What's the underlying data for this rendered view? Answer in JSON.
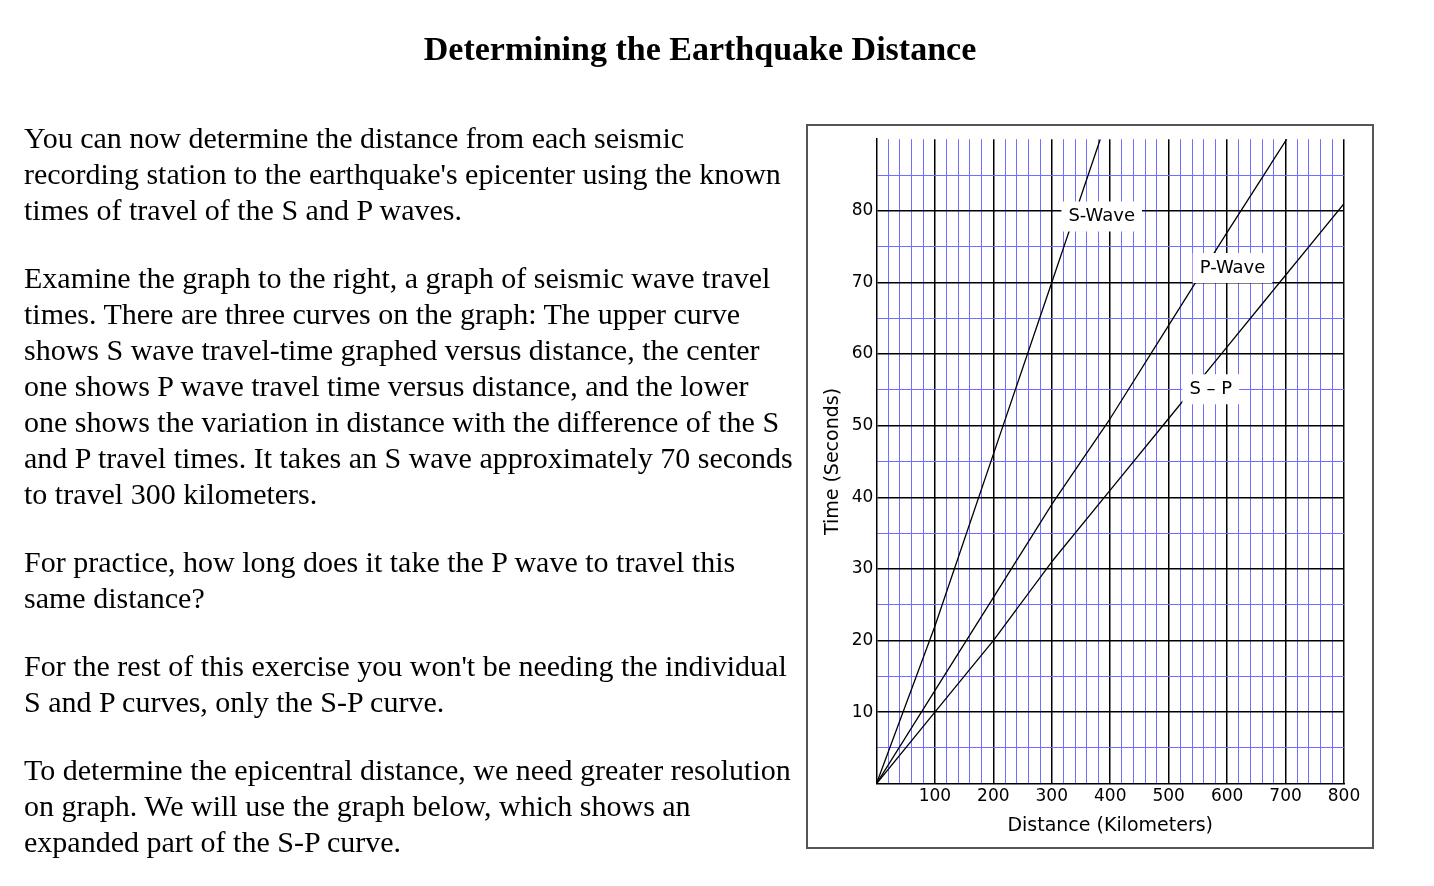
{
  "chart_data": {
    "type": "line",
    "title": "Determining the Earthquake Distance",
    "annotations": [
      "You can now determine the distance from each seismic recording station to the earthquake's epicenter using the known times of travel of the S and P waves.",
      "Examine the graph to the right, a graph of seismic wave travel times. There are three curves on the graph: The upper curve shows S wave travel-time graphed versus distance, the center one shows P wave travel time versus distance, and the lower one shows the variation in distance with the difference of the S and P travel times. It takes an S wave approximately 70 seconds to travel 300 kilometers.",
      "For practice, how long does it take the P wave to travel this same distance?",
      "For the rest of this exercise you won't be needing the individual S and P curves, only the S-P curve.",
      "To determine the epicentral distance, we need greater resolution on graph. We will use the graph below, which shows an expanded part of the S-P curve."
    ],
    "xlabel": "Distance (Kilometers)",
    "ylabel": "Time (Seconds)",
    "series": [
      {
        "name": "S-Wave",
        "color": "#000000",
        "x": [
          0,
          100,
          200,
          300,
          383
        ],
        "values": [
          0,
          22,
          46,
          70,
          90
        ]
      },
      {
        "name": "P-Wave",
        "color": "#000000",
        "x": [
          0,
          100,
          200,
          300,
          400,
          500,
          600,
          702
        ],
        "values": [
          0,
          13,
          26,
          39,
          51,
          64,
          77,
          90
        ]
      },
      {
        "name": "S – P",
        "color": "#000000",
        "x": [
          0,
          100,
          200,
          300,
          400,
          500,
          600,
          700,
          800
        ],
        "values": [
          0,
          10,
          20,
          31,
          41,
          51,
          61,
          71,
          81
        ]
      }
    ],
    "xlim": [
      0,
      800
    ],
    "ylim": [
      0,
      90
    ],
    "xticks": [
      {
        "value": 20,
        "label": null
      },
      {
        "value": 40,
        "label": null
      },
      {
        "value": 60,
        "label": null
      },
      {
        "value": 80,
        "label": null
      },
      100,
      {
        "value": 120,
        "label": null
      },
      {
        "value": 140,
        "label": null
      },
      {
        "value": 160,
        "label": null
      },
      {
        "value": 180,
        "label": null
      },
      200,
      {
        "value": 220,
        "label": null
      },
      {
        "value": 240,
        "label": null
      },
      {
        "value": 260,
        "label": null
      },
      {
        "value": 280,
        "label": null
      },
      300,
      {
        "value": 320,
        "label": null
      },
      {
        "value": 340,
        "label": null
      },
      {
        "value": 360,
        "label": null
      },
      {
        "value": 380,
        "label": null
      },
      400,
      {
        "value": 420,
        "label": null
      },
      {
        "value": 440,
        "label": null
      },
      {
        "value": 460,
        "label": null
      },
      {
        "value": 480,
        "label": null
      },
      500,
      {
        "value": 520,
        "label": null
      },
      {
        "value": 540,
        "label": null
      },
      {
        "value": 560,
        "label": null
      },
      {
        "value": 580,
        "label": null
      },
      600,
      {
        "value": 620,
        "label": null
      },
      {
        "value": 640,
        "label": null
      },
      {
        "value": 660,
        "label": null
      },
      {
        "value": 680,
        "label": null
      },
      700,
      {
        "value": 720,
        "label": null
      },
      {
        "value": 740,
        "label": null
      },
      {
        "value": 760,
        "label": null
      },
      {
        "value": 780,
        "label": null
      },
      800
    ],
    "yticks": [
      {
        "value": 5,
        "label": null
      },
      10,
      {
        "value": 15,
        "label": null
      },
      20,
      {
        "value": 25,
        "label": null
      },
      30,
      {
        "value": 35,
        "label": null
      },
      40,
      {
        "value": 45,
        "label": null
      },
      50,
      {
        "value": 55,
        "label": null
      },
      60,
      {
        "value": 65,
        "label": null
      },
      70,
      {
        "value": 75,
        "label": null
      },
      80,
      {
        "value": 85,
        "label": null
      }
    ],
    "grid": true,
    "legend": false,
    "marker": "none",
    "line_style": "solid"
  }
}
